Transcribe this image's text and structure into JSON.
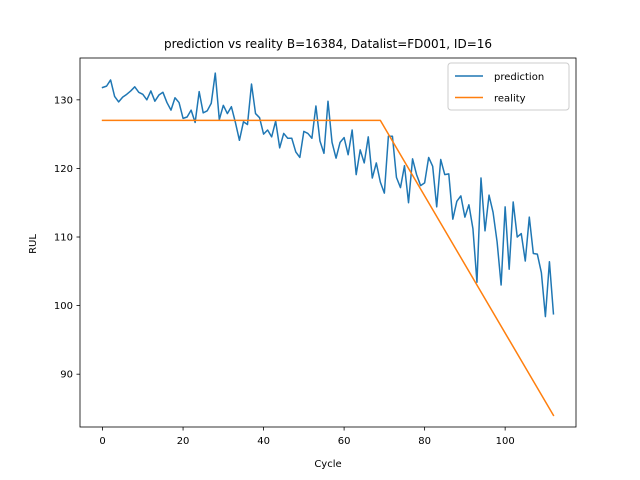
{
  "chart_data": {
    "type": "line",
    "title": "prediction vs reality B=16384, Datalist=FD001, ID=16",
    "xlabel": "Cycle",
    "ylabel": "RUL",
    "xlim": [
      -5.6,
      117.6
    ],
    "ylim": [
      82.3,
      136.1
    ],
    "xticks": [
      0,
      20,
      40,
      60,
      80,
      100
    ],
    "yticks": [
      90,
      100,
      110,
      120,
      130
    ],
    "grid": false,
    "legend_position": "top-right",
    "series": [
      {
        "name": "prediction",
        "color": "#1f77b4",
        "x": [
          0,
          1,
          2,
          3,
          4,
          5,
          6,
          7,
          8,
          9,
          10,
          11,
          12,
          13,
          14,
          15,
          16,
          17,
          18,
          19,
          20,
          21,
          22,
          23,
          24,
          25,
          26,
          27,
          28,
          29,
          30,
          31,
          32,
          33,
          34,
          35,
          36,
          37,
          38,
          39,
          40,
          41,
          42,
          43,
          44,
          45,
          46,
          47,
          48,
          49,
          50,
          51,
          52,
          53,
          54,
          55,
          56,
          57,
          58,
          59,
          60,
          61,
          62,
          63,
          64,
          65,
          66,
          67,
          68,
          69,
          70,
          71,
          72,
          73,
          74,
          75,
          76,
          77,
          78,
          79,
          80,
          81,
          82,
          83,
          84,
          85,
          86,
          87,
          88,
          89,
          90,
          91,
          92,
          93,
          94,
          95,
          96,
          97,
          98,
          99,
          100,
          101,
          102,
          103,
          104,
          105,
          106,
          107,
          108,
          109,
          110,
          111,
          112
        ],
        "y": [
          131.8,
          132.0,
          132.9,
          130.5,
          129.7,
          130.4,
          130.8,
          131.3,
          131.9,
          131.1,
          130.8,
          130.0,
          131.3,
          129.8,
          130.7,
          131.1,
          129.6,
          128.5,
          130.3,
          129.6,
          127.3,
          127.5,
          128.5,
          126.7,
          131.2,
          128.1,
          128.4,
          129.5,
          133.9,
          127.1,
          129.2,
          128.0,
          129.0,
          126.7,
          124.1,
          126.8,
          126.4,
          132.3,
          128.0,
          127.4,
          125.0,
          125.6,
          124.6,
          126.9,
          123.0,
          125.1,
          124.4,
          124.4,
          122.4,
          121.6,
          125.4,
          125.1,
          124.4,
          129.1,
          124.0,
          122.2,
          129.8,
          123.8,
          121.5,
          123.8,
          124.5,
          122.0,
          125.6,
          119.1,
          122.7,
          120.8,
          124.6,
          118.6,
          120.8,
          118.0,
          116.4,
          124.7,
          124.7,
          118.7,
          117.2,
          120.4,
          115.0,
          121.4,
          119.1,
          117.5,
          117.9,
          121.6,
          120.3,
          114.4,
          121.3,
          119.1,
          119.2,
          112.6,
          115.2,
          116.0,
          112.9,
          114.7,
          111.2,
          103.4,
          118.6,
          110.9,
          116.1,
          113.6,
          109.3,
          103.0,
          114.4,
          105.3,
          115.1,
          110.0,
          110.5,
          106.5,
          112.9,
          107.6,
          107.5,
          104.8,
          98.4,
          106.4,
          98.8
        ]
      },
      {
        "name": "reality",
        "color": "#ff7f0e",
        "x": [
          0,
          69,
          112
        ],
        "y": [
          127,
          127,
          84
        ]
      }
    ]
  }
}
